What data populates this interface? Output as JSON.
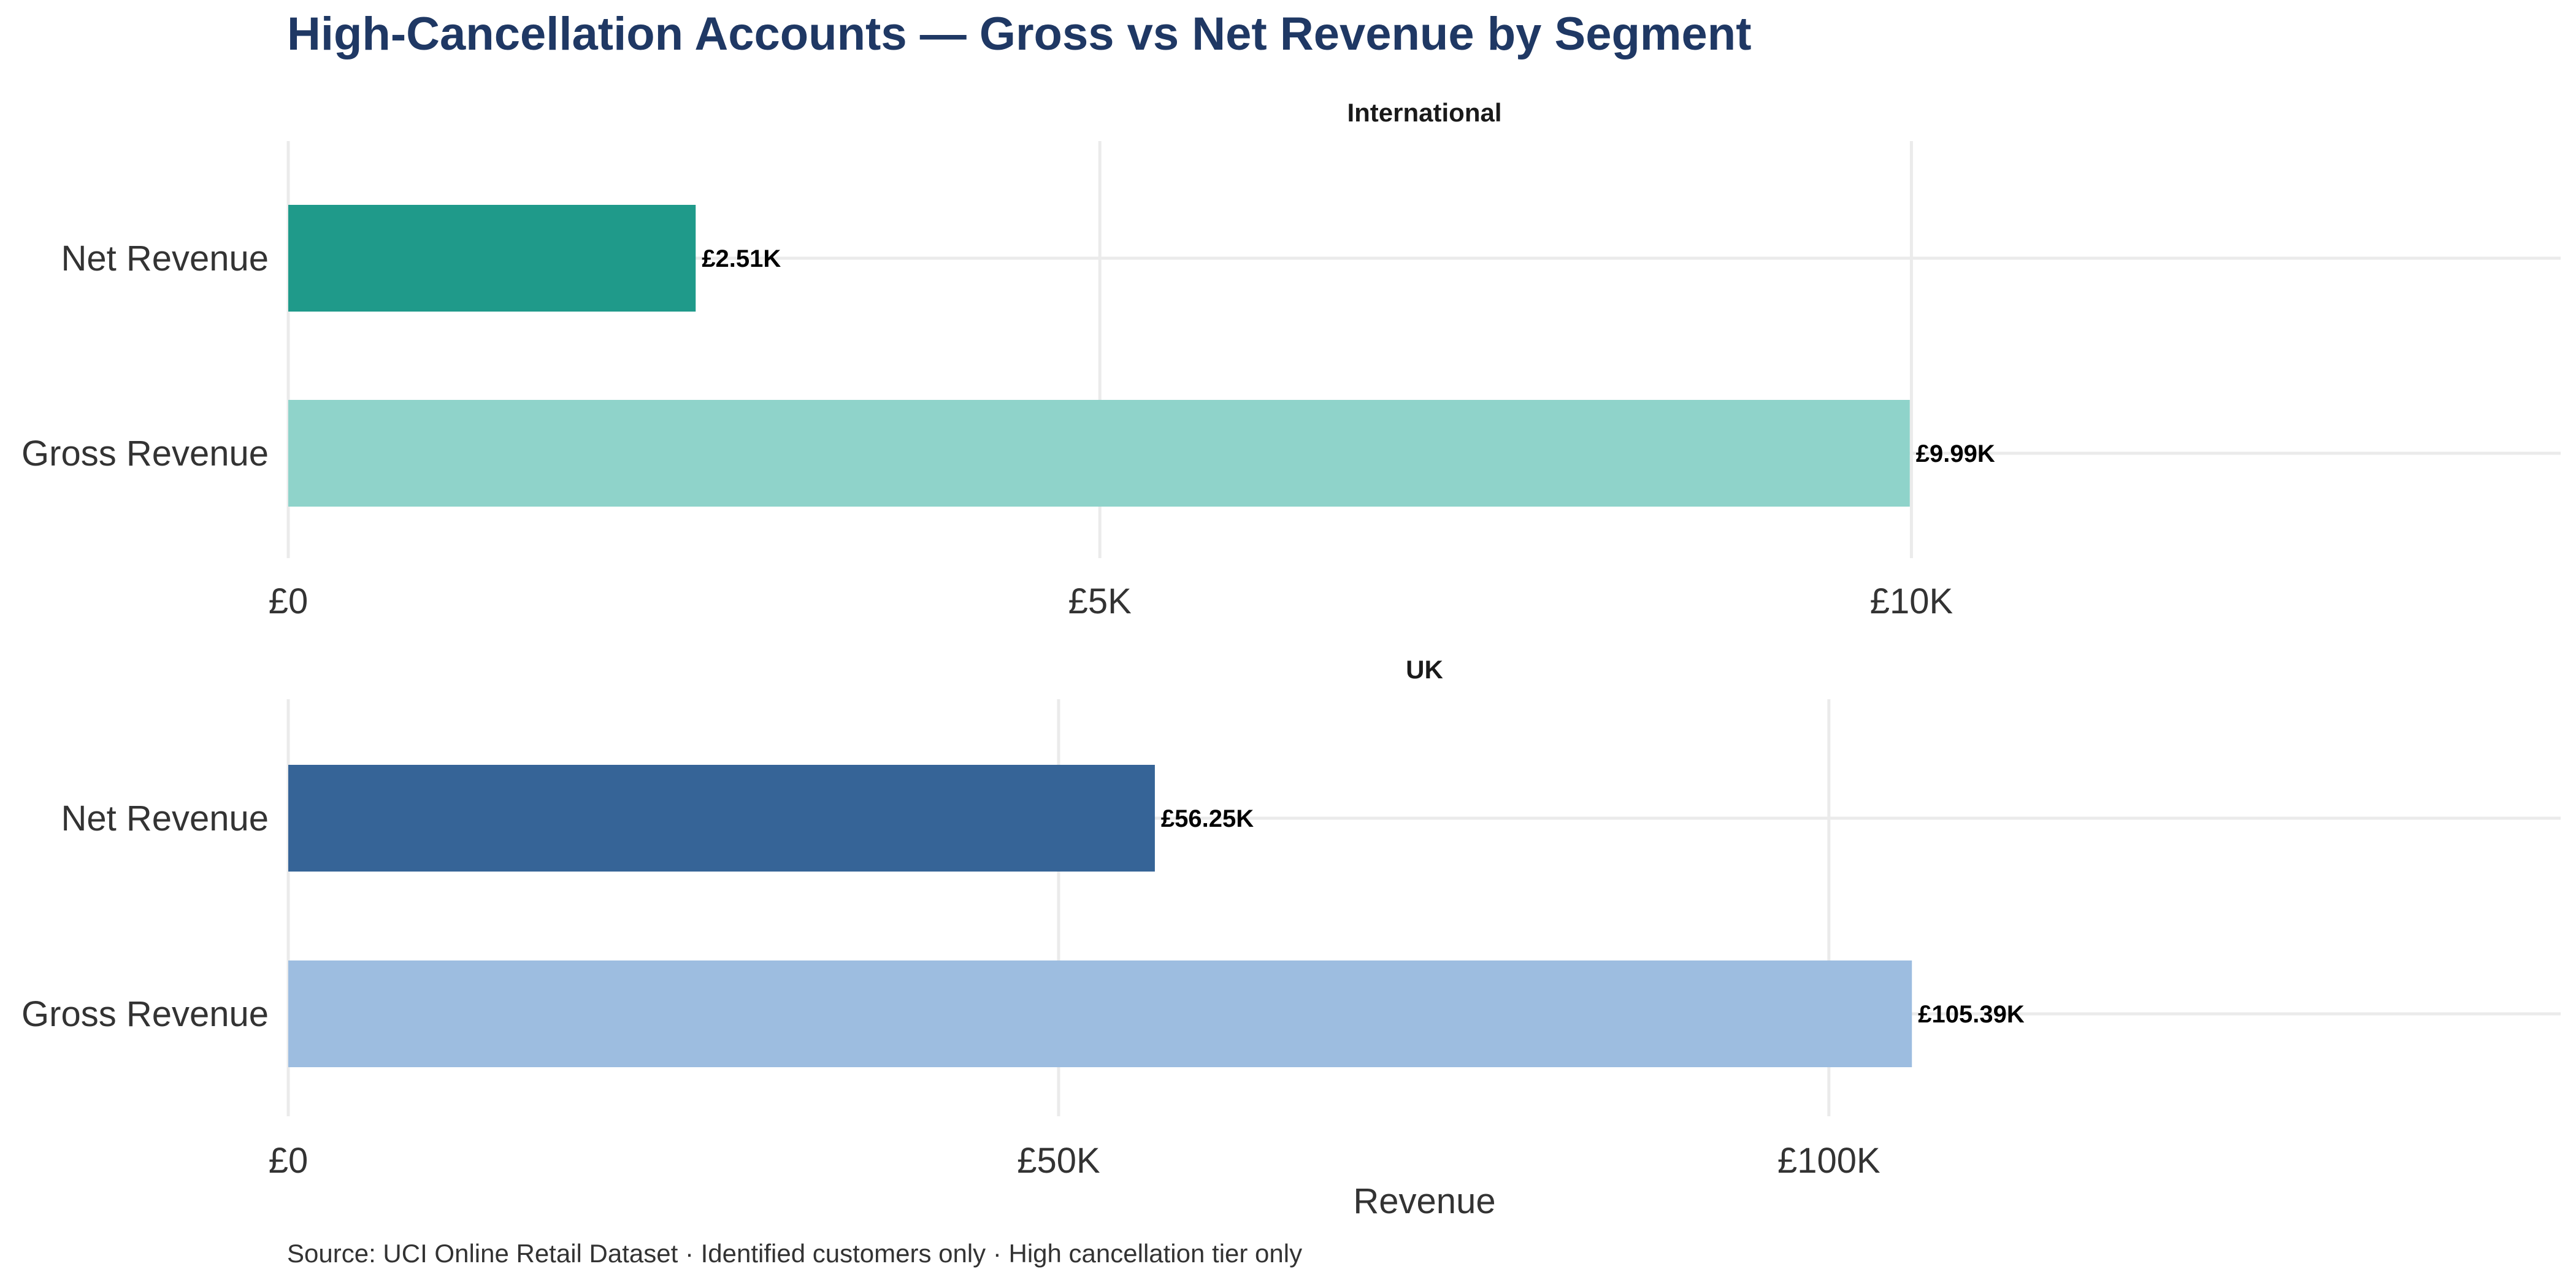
{
  "chart_data": {
    "type": "bar",
    "orientation": "horizontal",
    "title": "High-Cancellation Accounts — Gross vs Net Revenue by Segment",
    "caption": "Source: UCI Online Retail Dataset · Identified customers only · High cancellation tier only",
    "xlabel": "Revenue",
    "grid": true,
    "facets": [
      {
        "name": "International",
        "categories": [
          "Net Revenue",
          "Gross Revenue"
        ],
        "values": [
          2510,
          9990
        ],
        "value_labels": [
          "£2.51K",
          "£9.99K"
        ],
        "colors": [
          "#1f9a8a",
          "#8fd3ca"
        ],
        "xlim": [
          0,
          14000
        ],
        "ticks": [
          0,
          5000,
          10000
        ],
        "tick_labels": [
          "£0",
          "£5K",
          "£10K"
        ]
      },
      {
        "name": "UK",
        "categories": [
          "Net Revenue",
          "Gross Revenue"
        ],
        "values": [
          56250,
          105390
        ],
        "value_labels": [
          "£56.25K",
          "£105.39K"
        ],
        "colors": [
          "#366497",
          "#9dbde0"
        ],
        "xlim": [
          0,
          147500
        ],
        "ticks": [
          0,
          50000,
          100000
        ],
        "tick_labels": [
          "£0",
          "£50K",
          "£100K"
        ]
      }
    ]
  }
}
